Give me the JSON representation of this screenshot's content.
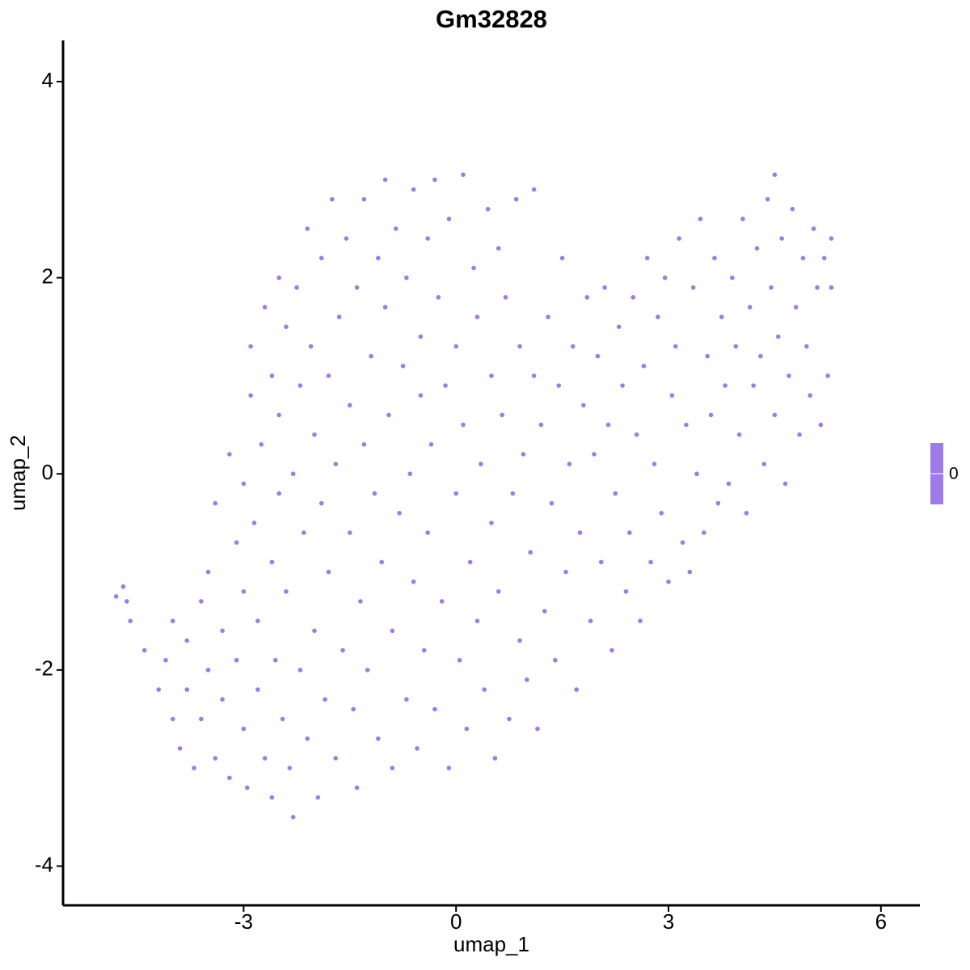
{
  "chart_data": {
    "type": "scatter",
    "title": "Gm32828",
    "x_label": "umap_1",
    "y_label": "umap_2",
    "color": "#9e7be9",
    "xlim": [
      -5.55,
      6.55
    ],
    "xticks": [
      -3,
      0,
      3,
      6
    ],
    "ylim": [
      -4.4,
      4.42
    ],
    "yticks": [
      -4,
      -2,
      0,
      2,
      4
    ],
    "colorbar_ticks": [
      0
    ],
    "x": [
      -4.8,
      -4.7,
      -4.65,
      -4.6,
      -4.4,
      -4.2,
      -4.1,
      -4.0,
      -4.0,
      -3.9,
      -3.8,
      -3.8,
      -3.7,
      -3.6,
      -3.6,
      -3.5,
      -3.5,
      -3.4,
      -3.4,
      -3.3,
      -3.3,
      -3.2,
      -3.2,
      -3.1,
      -3.1,
      -3.0,
      -3.0,
      -3.0,
      -2.95,
      -2.9,
      -2.9,
      -2.85,
      -2.8,
      -2.8,
      -2.75,
      -2.7,
      -2.7,
      -2.6,
      -2.6,
      -2.6,
      -2.55,
      -2.5,
      -2.5,
      -2.5,
      -2.45,
      -2.4,
      -2.4,
      -2.35,
      -2.3,
      -2.3,
      -2.25,
      -2.2,
      -2.2,
      -2.15,
      -2.1,
      -2.1,
      -2.05,
      -2.0,
      -2.0,
      -1.95,
      -1.9,
      -1.9,
      -1.85,
      -1.8,
      -1.8,
      -1.75,
      -1.7,
      -1.7,
      -1.65,
      -1.6,
      -1.55,
      -1.5,
      -1.5,
      -1.45,
      -1.4,
      -1.4,
      -1.35,
      -1.3,
      -1.3,
      -1.25,
      -1.2,
      -1.15,
      -1.1,
      -1.1,
      -1.05,
      -1.0,
      -1.0,
      -0.95,
      -0.9,
      -0.9,
      -0.85,
      -0.8,
      -0.75,
      -0.7,
      -0.7,
      -0.65,
      -0.6,
      -0.6,
      -0.55,
      -0.5,
      -0.5,
      -0.45,
      -0.4,
      -0.4,
      -0.35,
      -0.3,
      -0.3,
      -0.25,
      -0.2,
      -0.15,
      -0.1,
      -0.1,
      0.0,
      0.0,
      0.05,
      0.1,
      0.1,
      0.15,
      0.2,
      0.25,
      0.3,
      0.3,
      0.35,
      0.4,
      0.45,
      0.5,
      0.5,
      0.55,
      0.6,
      0.6,
      0.65,
      0.7,
      0.75,
      0.8,
      0.85,
      0.9,
      0.9,
      0.95,
      1.0,
      1.05,
      1.1,
      1.1,
      1.15,
      1.2,
      1.25,
      1.3,
      1.35,
      1.4,
      1.45,
      1.5,
      1.55,
      1.6,
      1.65,
      1.7,
      1.75,
      1.8,
      1.85,
      1.9,
      1.95,
      2.0,
      2.05,
      2.1,
      2.15,
      2.2,
      2.25,
      2.3,
      2.35,
      2.4,
      2.45,
      2.5,
      2.55,
      2.6,
      2.65,
      2.7,
      2.75,
      2.8,
      2.85,
      2.9,
      2.95,
      3.0,
      3.05,
      3.1,
      3.15,
      3.2,
      3.25,
      3.3,
      3.35,
      3.4,
      3.45,
      3.5,
      3.55,
      3.6,
      3.65,
      3.7,
      3.75,
      3.8,
      3.85,
      3.9,
      3.95,
      4.0,
      4.05,
      4.1,
      4.15,
      4.2,
      4.25,
      4.3,
      4.35,
      4.4,
      4.45,
      4.5,
      4.5,
      4.55,
      4.6,
      4.65,
      4.7,
      4.75,
      4.8,
      4.85,
      4.9,
      4.95,
      5.0,
      5.05,
      5.1,
      5.15,
      5.2,
      5.25,
      5.3,
      5.3
    ],
    "values": [
      -1.25,
      -1.15,
      -1.3,
      -1.5,
      -1.8,
      -2.2,
      -1.9,
      -1.5,
      -2.5,
      -2.8,
      -1.7,
      -2.2,
      -3.0,
      -1.3,
      -2.5,
      -2.0,
      -1.0,
      -2.9,
      -0.3,
      -1.6,
      -2.3,
      -3.1,
      0.2,
      -0.7,
      -1.9,
      -2.6,
      -1.2,
      -0.1,
      -3.2,
      0.8,
      1.3,
      -0.5,
      -1.5,
      -2.2,
      0.3,
      1.7,
      -2.9,
      -0.9,
      1.0,
      -3.3,
      -1.9,
      2.0,
      0.6,
      -0.2,
      -2.5,
      1.5,
      -1.2,
      -3.0,
      0.0,
      -3.5,
      1.9,
      -2.0,
      0.9,
      -0.6,
      2.5,
      -2.7,
      1.3,
      -1.6,
      0.4,
      -3.3,
      2.2,
      -0.3,
      -2.3,
      1.0,
      -1.0,
      2.8,
      0.1,
      -2.9,
      1.6,
      -1.8,
      2.4,
      -0.6,
      0.7,
      -2.4,
      1.9,
      -3.2,
      -1.3,
      2.8,
      0.3,
      -2.0,
      1.2,
      -0.2,
      2.2,
      -2.7,
      -0.9,
      1.7,
      3.0,
      0.6,
      -1.6,
      -3.0,
      2.5,
      -0.4,
      1.1,
      -2.3,
      2.0,
      0.0,
      -1.1,
      2.9,
      -2.8,
      1.4,
      0.8,
      -1.8,
      2.4,
      -0.6,
      0.3,
      3.0,
      -2.4,
      1.8,
      -1.3,
      0.9,
      -3.0,
      2.6,
      -0.2,
      1.3,
      -1.9,
      3.05,
      0.5,
      -2.6,
      -0.9,
      2.1,
      1.6,
      -1.5,
      0.1,
      -2.2,
      2.7,
      -0.5,
      1.0,
      -2.9,
      2.3,
      -1.2,
      0.6,
      1.8,
      -2.5,
      -0.2,
      2.8,
      -1.7,
      1.3,
      0.2,
      -2.1,
      -0.8,
      1.0,
      2.9,
      -2.6,
      0.5,
      -1.4,
      1.6,
      -0.3,
      -1.9,
      0.9,
      2.2,
      -1.0,
      0.1,
      1.3,
      -2.2,
      -0.6,
      0.7,
      1.8,
      -1.5,
      0.2,
      1.2,
      -0.9,
      1.9,
      0.5,
      -1.8,
      -0.2,
      1.5,
      0.9,
      -1.2,
      -0.6,
      1.8,
      0.4,
      -1.5,
      1.1,
      2.2,
      -0.9,
      0.1,
      1.6,
      -0.4,
      2.0,
      -1.1,
      0.8,
      1.3,
      2.4,
      -0.7,
      0.5,
      -1.0,
      1.9,
      0.0,
      2.6,
      -0.6,
      1.2,
      0.6,
      2.2,
      -0.3,
      1.6,
      0.9,
      -0.1,
      2.0,
      1.3,
      0.4,
      2.6,
      -0.4,
      1.7,
      0.9,
      2.3,
      1.2,
      0.1,
      2.8,
      1.9,
      0.6,
      3.05,
      1.4,
      2.4,
      -0.1,
      1.0,
      2.7,
      1.7,
      0.4,
      2.2,
      1.3,
      0.8,
      2.5,
      1.9,
      0.5,
      2.2,
      1.0,
      2.4,
      1.9
    ]
  }
}
